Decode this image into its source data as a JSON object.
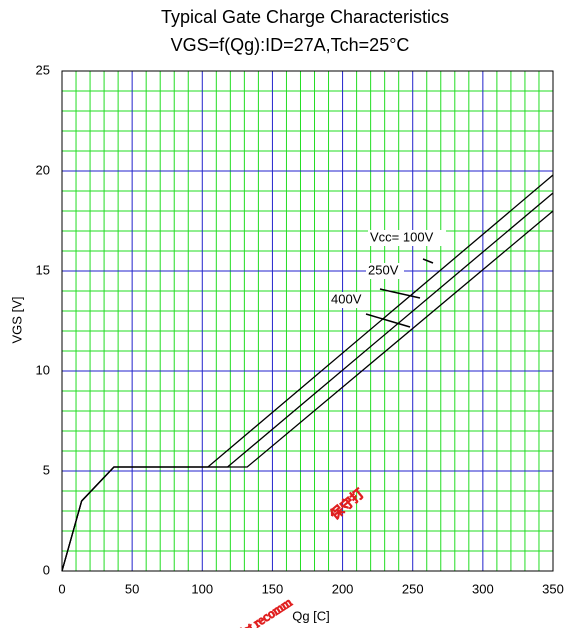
{
  "chart_data": {
    "type": "line",
    "title": "Typical Gate Charge Characteristics",
    "subtitle": "VGS=f(Qg):ID=27A,Tch=25°C",
    "x_label": "Qg [C]",
    "y_label": "VGS [V]",
    "xlim": [
      0,
      350
    ],
    "ylim": [
      0,
      25
    ],
    "xticks": [
      0,
      50,
      100,
      150,
      200,
      250,
      300,
      350
    ],
    "yticks": [
      0,
      5,
      10,
      15,
      20,
      25
    ],
    "grid": true,
    "series": [
      {
        "name": "Vcc= 100V",
        "color": "#000000",
        "x": [
          0,
          14,
          37,
          104,
          350
        ],
        "values": [
          0,
          3.5,
          5.2,
          5.2,
          19.8
        ]
      },
      {
        "name": "250V",
        "color": "#000000",
        "x": [
          0,
          14,
          37,
          118,
          350
        ],
        "values": [
          0,
          3.5,
          5.2,
          5.2,
          18.9
        ]
      },
      {
        "name": "400V",
        "color": "#000000",
        "x": [
          0,
          14,
          37,
          132,
          350
        ],
        "values": [
          0,
          3.5,
          5.2,
          5.2,
          18.0
        ]
      }
    ],
    "watermark": [
      "保守打",
      "Not recomm"
    ]
  }
}
